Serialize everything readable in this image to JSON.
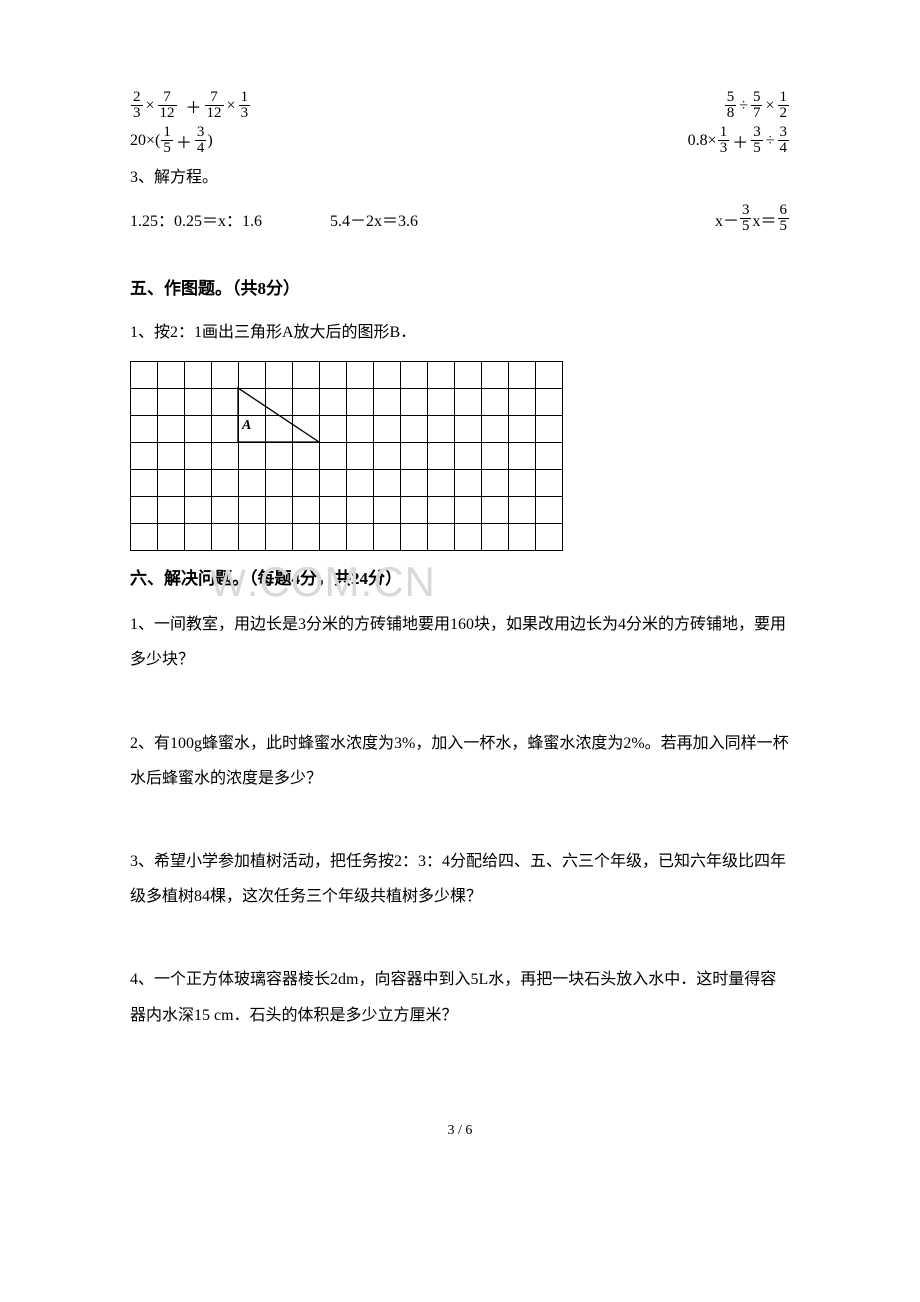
{
  "math_section": {
    "row1": {
      "left": {
        "f1_n": "2",
        "f1_d": "3",
        "op1": "×",
        "f2_n": "7",
        "f2_d": "12",
        "op2": "＋",
        "f3_n": "7",
        "f3_d": "12",
        "op3": "×",
        "f4_n": "1",
        "f4_d": "3"
      },
      "right": {
        "f1_n": "5",
        "f1_d": "8",
        "op1": "÷",
        "f2_n": "5",
        "f2_d": "7",
        "op2": "×",
        "f3_n": "1",
        "f3_d": "2"
      }
    },
    "row2": {
      "left": {
        "prefix": "20×(",
        "f1_n": "1",
        "f1_d": "5",
        "op1": "＋",
        "f2_n": "3",
        "f2_d": "4",
        "suffix": ")"
      },
      "right": {
        "prefix": "0.8×",
        "f1_n": "1",
        "f1_d": "3",
        "op1": "＋",
        "f2_n": "3",
        "f2_d": "5",
        "op2": "÷",
        "f3_n": "3",
        "f3_d": "4"
      }
    },
    "sub3_label": "3、解方程。",
    "row3": {
      "c1": "1.25：0.25＝x：1.6",
      "c2": "5.4－2x＝3.6",
      "c3_prefix": "x－",
      "c3_f1_n": "3",
      "c3_f1_d": "5",
      "c3_mid": "x＝",
      "c3_f2_n": "6",
      "c3_f2_d": "5"
    }
  },
  "section5": {
    "title": "五、作图题。（共8分）",
    "q1": "1、按2：1画出三角形A放大后的图形B．",
    "grid": {
      "cols": 16,
      "rows": 7,
      "label": "A",
      "label_cell_row": 2,
      "label_cell_col": 4,
      "tri_points": [
        [
          4,
          1
        ],
        [
          4,
          3
        ],
        [
          7,
          3
        ]
      ]
    }
  },
  "section6": {
    "title": "六、解决问题。（每题4分，共24分）",
    "q1": "1、一间教室，用边长是3分米的方砖铺地要用160块，如果改用边长为4分米的方砖铺地，要用多少块？",
    "q2": "2、有100g蜂蜜水，此时蜂蜜水浓度为3%，加入一杯水，蜂蜜水浓度为2%。若再加入同样一杯水后蜂蜜水的浓度是多少？",
    "q3": "3、希望小学参加植树活动，把任务按2：3：4分配给四、五、六三个年级，已知六年级比四年级多植树84棵，这次任务三个年级共植树多少棵？",
    "q4": "4、一个正方体玻璃容器棱长2dm，向容器中到入5L水，再把一块石头放入水中．这时量得容器内水深15 cm．石头的体积是多少立方厘米？"
  },
  "watermark": {
    "prefix": "W",
    "suffix": ".COM.CN"
  },
  "page_num": "3 / 6"
}
